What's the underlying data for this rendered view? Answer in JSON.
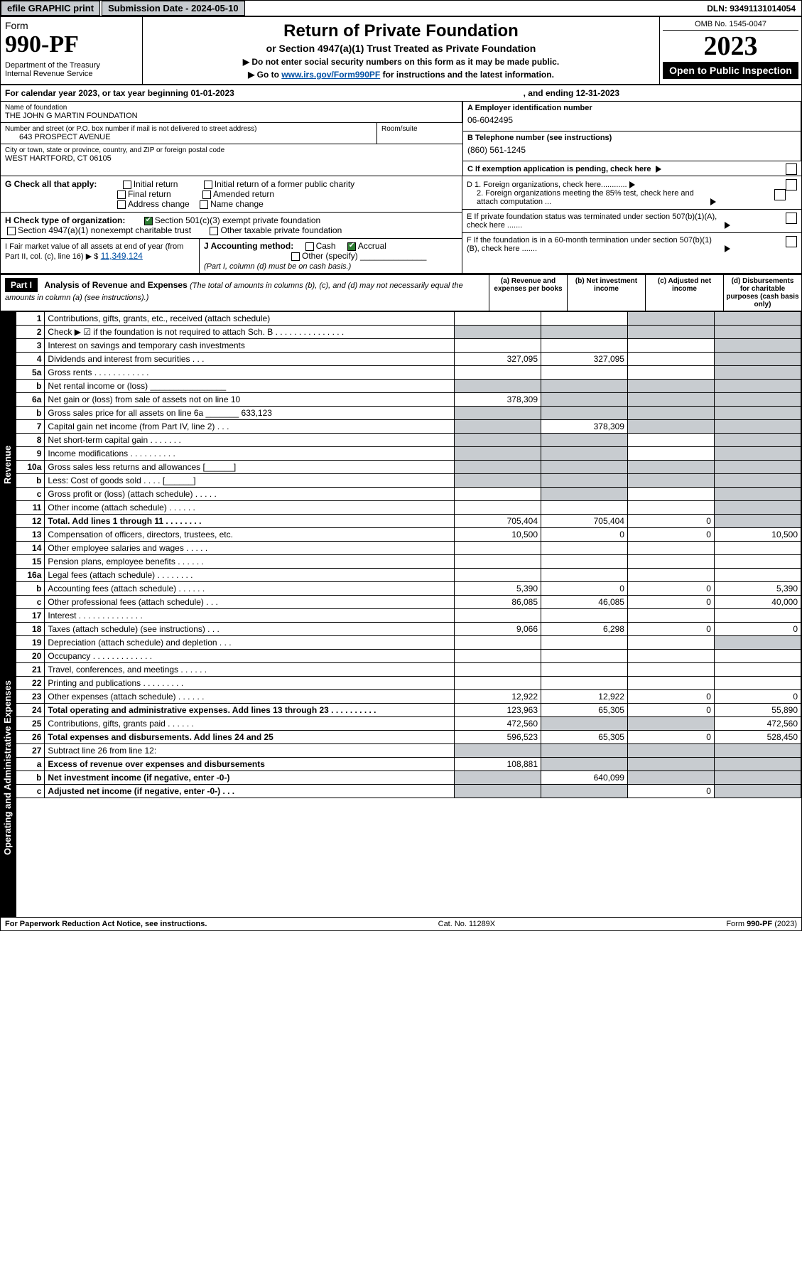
{
  "top": {
    "efile": "efile GRAPHIC print",
    "sub_label": "Submission Date - 2024-05-10",
    "dln": "DLN: 93491131014054"
  },
  "hdr": {
    "form_label": "Form",
    "form_no": "990-PF",
    "dept": "Department of the Treasury",
    "irs": "Internal Revenue Service",
    "title": "Return of Private Foundation",
    "sub": "or Section 4947(a)(1) Trust Treated as Private Foundation",
    "note1": "▶ Do not enter social security numbers on this form as it may be made public.",
    "note2_a": "▶ Go to ",
    "note2_link": "www.irs.gov/Form990PF",
    "note2_b": " for instructions and the latest information.",
    "omb": "OMB No. 1545-0047",
    "year": "2023",
    "open": "Open to Public Inspection"
  },
  "cal": {
    "a": "For calendar year 2023, or tax year beginning 01-01-2023",
    "b": ", and ending 12-31-2023"
  },
  "id": {
    "name_lbl": "Name of foundation",
    "name": "THE JOHN G MARTIN FOUNDATION",
    "addr_lbl": "Number and street (or P.O. box number if mail is not delivered to street address)",
    "room_lbl": "Room/suite",
    "addr": "643 PROSPECT AVENUE",
    "city_lbl": "City or town, state or province, country, and ZIP or foreign postal code",
    "city": "WEST HARTFORD, CT  06105",
    "ein_lbl": "A Employer identification number",
    "ein": "06-6042495",
    "tel_lbl": "B Telephone number (see instructions)",
    "tel": "(860) 561-1245",
    "c_lbl": "C If exemption application is pending, check here"
  },
  "g": {
    "lbl": "G Check all that apply:",
    "o1": "Initial return",
    "o2": "Final return",
    "o3": "Address change",
    "o4": "Initial return of a former public charity",
    "o5": "Amended return",
    "o6": "Name change"
  },
  "h": {
    "lbl": "H Check type of organization:",
    "o1": "Section 501(c)(3) exempt private foundation",
    "o2": "Section 4947(a)(1) nonexempt charitable trust",
    "o3": "Other taxable private foundation"
  },
  "i": {
    "lbl": "I Fair market value of all assets at end of year (from Part II, col. (c), line 16) ▶ $",
    "val": "11,349,124"
  },
  "j": {
    "lbl": "J Accounting method:",
    "o1": "Cash",
    "o2": "Accrual",
    "o3": "Other (specify)",
    "note": "(Part I, column (d) must be on cash basis.)"
  },
  "d": {
    "d1": "D 1. Foreign organizations, check here............",
    "d2": "2. Foreign organizations meeting the 85% test, check here and attach computation ..."
  },
  "e": {
    "lbl": "E  If private foundation status was terminated under section 507(b)(1)(A), check here ......."
  },
  "f": {
    "lbl": "F  If the foundation is in a 60-month termination under section 507(b)(1)(B), check here ......."
  },
  "p1": {
    "part": "Part I",
    "title": "Analysis of Revenue and Expenses",
    "note": "(The total of amounts in columns (b), (c), and (d) may not necessarily equal the amounts in column (a) (see instructions).)",
    "ca": "(a) Revenue and expenses per books",
    "cb": "(b) Net investment income",
    "cc": "(c) Adjusted net income",
    "cd": "(d) Disbursements for charitable purposes (cash basis only)",
    "side_rev": "Revenue",
    "side_exp": "Operating and Administrative Expenses"
  },
  "rows": [
    {
      "n": "1",
      "d": "Contributions, gifts, grants, etc., received (attach schedule)",
      "a": "",
      "b": "",
      "c": "sh",
      "dd": "sh"
    },
    {
      "n": "2",
      "d": "Check ▶ ☑ if the foundation is not required to attach Sch. B      .   .   .   .   .   .   .   .   .   .   .   .   .   .   .",
      "a": "sh",
      "b": "sh",
      "c": "sh",
      "dd": "sh"
    },
    {
      "n": "3",
      "d": "Interest on savings and temporary cash investments",
      "a": "",
      "b": "",
      "c": "",
      "dd": "sh"
    },
    {
      "n": "4",
      "d": "Dividends and interest from securities    .   .   .",
      "a": "327,095",
      "b": "327,095",
      "c": "",
      "dd": "sh"
    },
    {
      "n": "5a",
      "d": "Gross rents       .   .   .   .   .   .   .   .   .   .   .   .",
      "a": "",
      "b": "",
      "c": "",
      "dd": "sh"
    },
    {
      "n": "b",
      "d": "Net rental income or (loss)  ________________",
      "a": "sh",
      "b": "sh",
      "c": "sh",
      "dd": "sh"
    },
    {
      "n": "6a",
      "d": "Net gain or (loss) from sale of assets not on line 10",
      "a": "378,309",
      "b": "sh",
      "c": "sh",
      "dd": "sh"
    },
    {
      "n": "b",
      "d": "Gross sales price for all assets on line 6a _______ 633,123",
      "a": "sh",
      "b": "sh",
      "c": "sh",
      "dd": "sh"
    },
    {
      "n": "7",
      "d": "Capital gain net income (from Part IV, line 2)   .   .   .",
      "a": "sh",
      "b": "378,309",
      "c": "sh",
      "dd": "sh"
    },
    {
      "n": "8",
      "d": "Net short-term capital gain   .   .   .   .   .   .   .",
      "a": "sh",
      "b": "sh",
      "c": "",
      "dd": "sh"
    },
    {
      "n": "9",
      "d": "Income modifications  .   .   .   .   .   .   .   .   .   .",
      "a": "sh",
      "b": "sh",
      "c": "",
      "dd": "sh"
    },
    {
      "n": "10a",
      "d": "Gross sales less returns and allowances  [______]",
      "a": "sh",
      "b": "sh",
      "c": "sh",
      "dd": "sh"
    },
    {
      "n": "b",
      "d": "Less: Cost of goods sold     .   .   .   .   [______]",
      "a": "sh",
      "b": "sh",
      "c": "sh",
      "dd": "sh"
    },
    {
      "n": "c",
      "d": "Gross profit or (loss) (attach schedule)   .   .   .   .   .",
      "a": "",
      "b": "sh",
      "c": "",
      "dd": "sh"
    },
    {
      "n": "11",
      "d": "Other income (attach schedule)    .   .   .   .   .   .",
      "a": "",
      "b": "",
      "c": "",
      "dd": "sh"
    },
    {
      "n": "12",
      "d": "Total. Add lines 1 through 11   .   .   .   .   .   .   .   .",
      "a": "705,404",
      "b": "705,404",
      "c": "0",
      "dd": "sh",
      "bold": true
    },
    {
      "n": "13",
      "d": "Compensation of officers, directors, trustees, etc.",
      "a": "10,500",
      "b": "0",
      "c": "0",
      "dd": "10,500"
    },
    {
      "n": "14",
      "d": "Other employee salaries and wages    .   .   .   .   .",
      "a": "",
      "b": "",
      "c": "",
      "dd": ""
    },
    {
      "n": "15",
      "d": "Pension plans, employee benefits   .   .   .   .   .   .",
      "a": "",
      "b": "",
      "c": "",
      "dd": ""
    },
    {
      "n": "16a",
      "d": "Legal fees (attach schedule)  .   .   .   .   .   .   .   .",
      "a": "",
      "b": "",
      "c": "",
      "dd": ""
    },
    {
      "n": "b",
      "d": "Accounting fees (attach schedule)  .   .   .   .   .   .",
      "a": "5,390",
      "b": "0",
      "c": "0",
      "dd": "5,390"
    },
    {
      "n": "c",
      "d": "Other professional fees (attach schedule)    .   .   .",
      "a": "86,085",
      "b": "46,085",
      "c": "0",
      "dd": "40,000"
    },
    {
      "n": "17",
      "d": "Interest  .   .   .   .   .   .   .   .   .   .   .   .   .   .",
      "a": "",
      "b": "",
      "c": "",
      "dd": ""
    },
    {
      "n": "18",
      "d": "Taxes (attach schedule) (see instructions)    .   .   .",
      "a": "9,066",
      "b": "6,298",
      "c": "0",
      "dd": "0"
    },
    {
      "n": "19",
      "d": "Depreciation (attach schedule) and depletion   .   .   .",
      "a": "",
      "b": "",
      "c": "",
      "dd": "sh"
    },
    {
      "n": "20",
      "d": "Occupancy  .   .   .   .   .   .   .   .   .   .   .   .   .",
      "a": "",
      "b": "",
      "c": "",
      "dd": ""
    },
    {
      "n": "21",
      "d": "Travel, conferences, and meetings  .   .   .   .   .   .",
      "a": "",
      "b": "",
      "c": "",
      "dd": ""
    },
    {
      "n": "22",
      "d": "Printing and publications  .   .   .   .   .   .   .   .   .",
      "a": "",
      "b": "",
      "c": "",
      "dd": ""
    },
    {
      "n": "23",
      "d": "Other expenses (attach schedule)  .   .   .   .   .   .",
      "a": "12,922",
      "b": "12,922",
      "c": "0",
      "dd": "0"
    },
    {
      "n": "24",
      "d": "Total operating and administrative expenses. Add lines 13 through 23   .   .   .   .   .   .   .   .   .   .",
      "a": "123,963",
      "b": "65,305",
      "c": "0",
      "dd": "55,890",
      "bold": true
    },
    {
      "n": "25",
      "d": "Contributions, gifts, grants paid     .   .   .   .   .   .",
      "a": "472,560",
      "b": "sh",
      "c": "sh",
      "dd": "472,560"
    },
    {
      "n": "26",
      "d": "Total expenses and disbursements. Add lines 24 and 25",
      "a": "596,523",
      "b": "65,305",
      "c": "0",
      "dd": "528,450",
      "bold": true
    },
    {
      "n": "27",
      "d": "Subtract line 26 from line 12:",
      "a": "sh",
      "b": "sh",
      "c": "sh",
      "dd": "sh"
    },
    {
      "n": "a",
      "d": "Excess of revenue over expenses and disbursements",
      "a": "108,881",
      "b": "sh",
      "c": "sh",
      "dd": "sh",
      "bold": true
    },
    {
      "n": "b",
      "d": "Net investment income (if negative, enter -0-)",
      "a": "sh",
      "b": "640,099",
      "c": "sh",
      "dd": "sh",
      "bold": true
    },
    {
      "n": "c",
      "d": "Adjusted net income (if negative, enter -0-)   .   .   .",
      "a": "sh",
      "b": "sh",
      "c": "0",
      "dd": "sh",
      "bold": true
    }
  ],
  "ftr": {
    "l": "For Paperwork Reduction Act Notice, see instructions.",
    "c": "Cat. No. 11289X",
    "r": "Form 990-PF (2023)"
  }
}
